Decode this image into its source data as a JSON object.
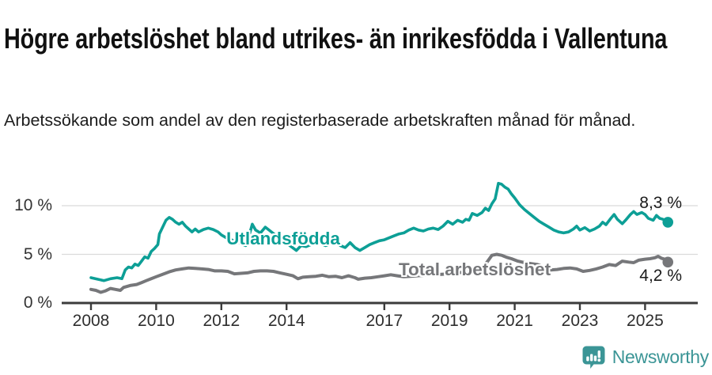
{
  "header": {
    "title": "Högre arbetslöshet bland utrikes- än inrikesfödda i Vallentuna",
    "subtitle": "Arbetssökande som andel av den registerbaserade arbetskraften månad för månad."
  },
  "footer": {
    "brand": "Newsworthy",
    "brand_color": "#3b9596"
  },
  "chart_data": {
    "type": "line",
    "unit": "percent",
    "grid": "horizontal",
    "x_axis": {
      "ticks": [
        2008,
        2010,
        2012,
        2014,
        2017,
        2019,
        2021,
        2023,
        2025
      ],
      "range": [
        2007.1,
        2026.6
      ]
    },
    "y_axis": {
      "ticks": [
        {
          "value": 0,
          "label": "0 %"
        },
        {
          "value": 5,
          "label": "5 %"
        },
        {
          "value": 10,
          "label": "10 %"
        }
      ],
      "range": [
        0,
        13.2
      ]
    },
    "series": [
      {
        "name": "Total arbetslöshet",
        "color": "#76777a",
        "end_label": "4,2 %",
        "end_value": 4.2,
        "points": [
          [
            2008.0,
            1.4
          ],
          [
            2008.15,
            1.3
          ],
          [
            2008.3,
            1.1
          ],
          [
            2008.45,
            1.25
          ],
          [
            2008.6,
            1.5
          ],
          [
            2008.75,
            1.4
          ],
          [
            2008.9,
            1.3
          ],
          [
            2009.0,
            1.6
          ],
          [
            2009.2,
            1.8
          ],
          [
            2009.4,
            1.9
          ],
          [
            2009.55,
            2.1
          ],
          [
            2009.7,
            2.3
          ],
          [
            2009.85,
            2.5
          ],
          [
            2010.0,
            2.7
          ],
          [
            2010.2,
            2.95
          ],
          [
            2010.4,
            3.2
          ],
          [
            2010.6,
            3.4
          ],
          [
            2010.8,
            3.5
          ],
          [
            2011.0,
            3.6
          ],
          [
            2011.2,
            3.55
          ],
          [
            2011.4,
            3.5
          ],
          [
            2011.6,
            3.45
          ],
          [
            2011.8,
            3.3
          ],
          [
            2012.0,
            3.3
          ],
          [
            2012.2,
            3.25
          ],
          [
            2012.4,
            3.0
          ],
          [
            2012.6,
            3.05
          ],
          [
            2012.8,
            3.1
          ],
          [
            2013.0,
            3.25
          ],
          [
            2013.2,
            3.3
          ],
          [
            2013.4,
            3.3
          ],
          [
            2013.6,
            3.25
          ],
          [
            2013.8,
            3.1
          ],
          [
            2014.0,
            2.95
          ],
          [
            2014.2,
            2.8
          ],
          [
            2014.35,
            2.5
          ],
          [
            2014.5,
            2.65
          ],
          [
            2014.7,
            2.7
          ],
          [
            2014.9,
            2.75
          ],
          [
            2015.1,
            2.85
          ],
          [
            2015.3,
            2.7
          ],
          [
            2015.5,
            2.75
          ],
          [
            2015.7,
            2.6
          ],
          [
            2015.9,
            2.8
          ],
          [
            2016.1,
            2.6
          ],
          [
            2016.2,
            2.45
          ],
          [
            2016.4,
            2.55
          ],
          [
            2016.6,
            2.6
          ],
          [
            2016.8,
            2.7
          ],
          [
            2017.0,
            2.8
          ],
          [
            2017.2,
            2.9
          ],
          [
            2017.4,
            2.8
          ],
          [
            2017.6,
            2.7
          ],
          [
            2017.8,
            2.75
          ],
          [
            2018.0,
            2.8
          ],
          [
            2018.25,
            2.85
          ],
          [
            2018.5,
            2.9
          ],
          [
            2018.75,
            2.95
          ],
          [
            2019.0,
            3.0
          ],
          [
            2019.25,
            3.1
          ],
          [
            2019.5,
            3.2
          ],
          [
            2019.75,
            3.4
          ],
          [
            2020.0,
            3.6
          ],
          [
            2020.15,
            4.2
          ],
          [
            2020.3,
            4.9
          ],
          [
            2020.45,
            5.0
          ],
          [
            2020.6,
            4.9
          ],
          [
            2020.75,
            4.7
          ],
          [
            2020.9,
            4.55
          ],
          [
            2021.1,
            4.3
          ],
          [
            2021.3,
            4.15
          ],
          [
            2021.5,
            4.05
          ],
          [
            2021.7,
            3.95
          ],
          [
            2021.9,
            3.7
          ],
          [
            2022.1,
            3.4
          ],
          [
            2022.3,
            3.45
          ],
          [
            2022.5,
            3.55
          ],
          [
            2022.7,
            3.6
          ],
          [
            2022.9,
            3.5
          ],
          [
            2023.1,
            3.25
          ],
          [
            2023.3,
            3.35
          ],
          [
            2023.5,
            3.5
          ],
          [
            2023.7,
            3.7
          ],
          [
            2023.9,
            3.95
          ],
          [
            2024.1,
            3.85
          ],
          [
            2024.3,
            4.3
          ],
          [
            2024.5,
            4.2
          ],
          [
            2024.65,
            4.15
          ],
          [
            2024.8,
            4.4
          ],
          [
            2025.0,
            4.5
          ],
          [
            2025.15,
            4.55
          ],
          [
            2025.3,
            4.65
          ],
          [
            2025.4,
            4.8
          ],
          [
            2025.5,
            4.6
          ],
          [
            2025.6,
            4.5
          ],
          [
            2025.7,
            4.2
          ]
        ]
      },
      {
        "name": "Utlandsfödda",
        "color": "#0d9f96",
        "end_label": "8,3 %",
        "end_value": 8.3,
        "points": [
          [
            2008.0,
            2.6
          ],
          [
            2008.2,
            2.45
          ],
          [
            2008.4,
            2.3
          ],
          [
            2008.6,
            2.5
          ],
          [
            2008.8,
            2.6
          ],
          [
            2008.95,
            2.5
          ],
          [
            2009.05,
            3.4
          ],
          [
            2009.15,
            3.7
          ],
          [
            2009.25,
            3.6
          ],
          [
            2009.35,
            4.0
          ],
          [
            2009.45,
            3.85
          ],
          [
            2009.55,
            4.3
          ],
          [
            2009.65,
            4.75
          ],
          [
            2009.75,
            4.6
          ],
          [
            2009.85,
            5.3
          ],
          [
            2009.95,
            5.6
          ],
          [
            2010.05,
            6.0
          ],
          [
            2010.1,
            7.1
          ],
          [
            2010.2,
            7.8
          ],
          [
            2010.3,
            8.5
          ],
          [
            2010.4,
            8.8
          ],
          [
            2010.5,
            8.6
          ],
          [
            2010.6,
            8.3
          ],
          [
            2010.7,
            8.1
          ],
          [
            2010.8,
            8.3
          ],
          [
            2010.9,
            7.9
          ],
          [
            2011.0,
            7.6
          ],
          [
            2011.1,
            7.3
          ],
          [
            2011.2,
            7.6
          ],
          [
            2011.3,
            7.3
          ],
          [
            2011.45,
            7.55
          ],
          [
            2011.6,
            7.7
          ],
          [
            2011.75,
            7.55
          ],
          [
            2011.9,
            7.3
          ],
          [
            2012.0,
            7.0
          ],
          [
            2012.15,
            6.7
          ],
          [
            2012.3,
            6.5
          ],
          [
            2012.45,
            6.3
          ],
          [
            2012.6,
            6.1
          ],
          [
            2012.75,
            5.9
          ],
          [
            2012.85,
            6.9
          ],
          [
            2012.95,
            8.1
          ],
          [
            2013.05,
            7.5
          ],
          [
            2013.2,
            7.2
          ],
          [
            2013.35,
            7.8
          ],
          [
            2013.5,
            7.4
          ],
          [
            2013.65,
            7.0
          ],
          [
            2013.8,
            6.6
          ],
          [
            2013.95,
            6.3
          ],
          [
            2014.1,
            5.9
          ],
          [
            2014.3,
            5.4
          ],
          [
            2014.45,
            5.9
          ],
          [
            2014.6,
            5.8
          ],
          [
            2014.75,
            6.0
          ],
          [
            2014.9,
            6.1
          ],
          [
            2015.05,
            6.1
          ],
          [
            2015.2,
            5.9
          ],
          [
            2015.35,
            6.1
          ],
          [
            2015.5,
            6.3
          ],
          [
            2015.65,
            5.9
          ],
          [
            2015.8,
            5.7
          ],
          [
            2015.95,
            6.2
          ],
          [
            2016.1,
            5.7
          ],
          [
            2016.25,
            5.4
          ],
          [
            2016.4,
            5.7
          ],
          [
            2016.55,
            6.0
          ],
          [
            2016.7,
            6.2
          ],
          [
            2016.85,
            6.4
          ],
          [
            2017.0,
            6.5
          ],
          [
            2017.15,
            6.7
          ],
          [
            2017.3,
            6.9
          ],
          [
            2017.45,
            7.1
          ],
          [
            2017.6,
            7.2
          ],
          [
            2017.75,
            7.5
          ],
          [
            2017.9,
            7.7
          ],
          [
            2018.05,
            7.5
          ],
          [
            2018.2,
            7.4
          ],
          [
            2018.35,
            7.6
          ],
          [
            2018.5,
            7.7
          ],
          [
            2018.65,
            7.55
          ],
          [
            2018.8,
            7.9
          ],
          [
            2018.95,
            8.4
          ],
          [
            2019.1,
            8.1
          ],
          [
            2019.25,
            8.5
          ],
          [
            2019.4,
            8.3
          ],
          [
            2019.5,
            8.6
          ],
          [
            2019.6,
            8.5
          ],
          [
            2019.7,
            9.2
          ],
          [
            2019.85,
            9.0
          ],
          [
            2020.0,
            9.3
          ],
          [
            2020.1,
            9.75
          ],
          [
            2020.2,
            9.5
          ],
          [
            2020.3,
            10.2
          ],
          [
            2020.4,
            10.7
          ],
          [
            2020.5,
            12.3
          ],
          [
            2020.6,
            12.2
          ],
          [
            2020.7,
            11.9
          ],
          [
            2020.8,
            11.7
          ],
          [
            2020.9,
            11.2
          ],
          [
            2021.0,
            10.8
          ],
          [
            2021.15,
            10.1
          ],
          [
            2021.3,
            9.6
          ],
          [
            2021.45,
            9.2
          ],
          [
            2021.6,
            8.8
          ],
          [
            2021.75,
            8.4
          ],
          [
            2021.9,
            8.1
          ],
          [
            2022.05,
            7.8
          ],
          [
            2022.2,
            7.5
          ],
          [
            2022.35,
            7.3
          ],
          [
            2022.5,
            7.2
          ],
          [
            2022.65,
            7.3
          ],
          [
            2022.8,
            7.6
          ],
          [
            2022.9,
            7.9
          ],
          [
            2023.0,
            7.5
          ],
          [
            2023.15,
            7.75
          ],
          [
            2023.3,
            7.4
          ],
          [
            2023.45,
            7.6
          ],
          [
            2023.6,
            7.9
          ],
          [
            2023.7,
            8.3
          ],
          [
            2023.8,
            8.05
          ],
          [
            2023.95,
            8.7
          ],
          [
            2024.05,
            9.1
          ],
          [
            2024.15,
            8.6
          ],
          [
            2024.3,
            8.15
          ],
          [
            2024.4,
            8.5
          ],
          [
            2024.55,
            9.1
          ],
          [
            2024.65,
            9.4
          ],
          [
            2024.75,
            9.1
          ],
          [
            2024.9,
            9.3
          ],
          [
            2025.0,
            9.1
          ],
          [
            2025.1,
            8.7
          ],
          [
            2025.25,
            8.5
          ],
          [
            2025.35,
            9.0
          ],
          [
            2025.45,
            8.7
          ],
          [
            2025.55,
            8.6
          ],
          [
            2025.65,
            8.4
          ],
          [
            2025.7,
            8.3
          ]
        ]
      }
    ]
  }
}
